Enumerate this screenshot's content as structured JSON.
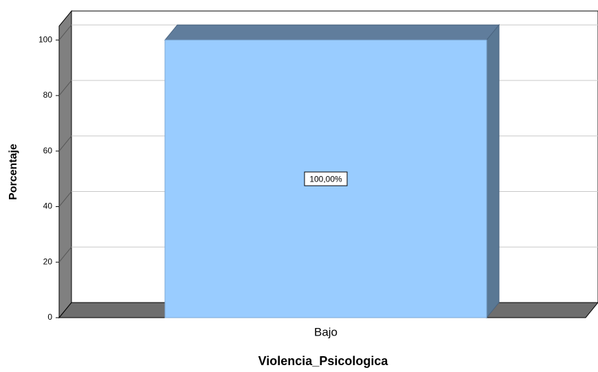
{
  "chart_data": {
    "type": "bar3d",
    "x_label": "Violencia_Psicologica",
    "y_label": "Porcentaje",
    "categories": [
      "Bajo"
    ],
    "values": [
      100
    ],
    "value_labels": [
      "100,00%"
    ],
    "color": "#99ccff",
    "ylim": [
      0,
      105
    ],
    "yticks": [
      0,
      20,
      40,
      60,
      80,
      100
    ],
    "grid": true
  }
}
